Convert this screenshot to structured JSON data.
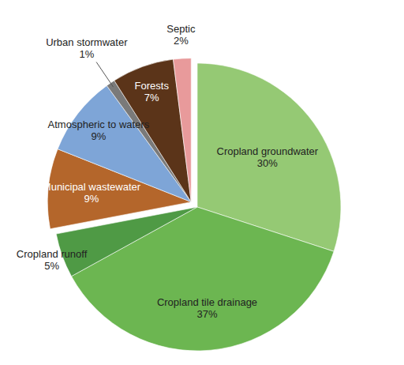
{
  "chart_data": {
    "type": "pie",
    "categories": [
      "Cropland groundwater",
      "Cropland tile drainage",
      "Cropland runoff",
      "Municipal wastewater",
      "Atmospheric to waters",
      "Urban stormwater",
      "Forests",
      "Septic"
    ],
    "values": [
      30,
      37,
      5,
      9,
      9,
      1,
      7,
      2
    ],
    "value_labels": [
      "30%",
      "37%",
      "5%",
      "9%",
      "9%",
      "1%",
      "7%",
      "2%"
    ],
    "colors": [
      "#95c974",
      "#6cb651",
      "#4f9a45",
      "#b4662b",
      "#7ea5d7",
      "#7a7a7a",
      "#5b3419",
      "#e89a9b"
    ],
    "data_labels": true
  }
}
